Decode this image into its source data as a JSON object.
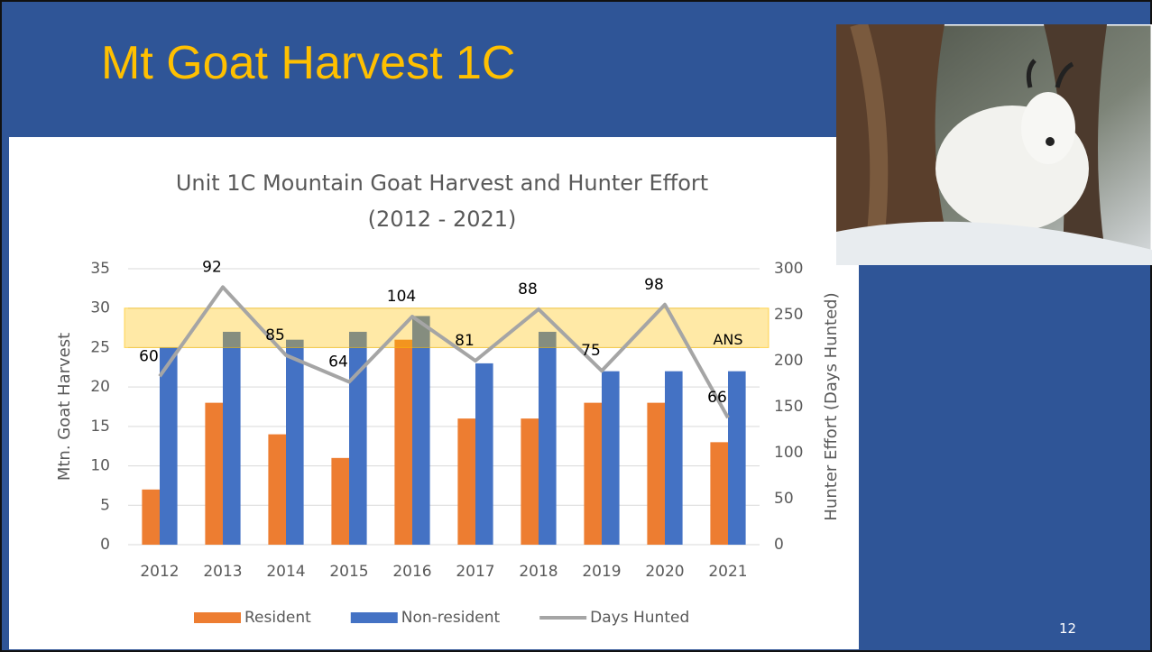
{
  "slide": {
    "title": "Mt Goat Harvest 1C",
    "page_number": "12"
  },
  "chart_data": {
    "type": "bar-line",
    "title": [
      "Unit 1C Mountain Goat Harvest and Hunter Effort",
      "(2012 - 2021)"
    ],
    "y_label": "Mtn. Goat Harvest",
    "y2_label": "Hunter Effort (Days Hunted)",
    "categories": [
      "2012",
      "2013",
      "2014",
      "2015",
      "2016",
      "2017",
      "2018",
      "2019",
      "2020",
      "2021"
    ],
    "series": [
      {
        "name": "Resident",
        "type": "bar",
        "color": "#ed7d31",
        "values": [
          7,
          18,
          14,
          11,
          26,
          16,
          16,
          18,
          18,
          13
        ]
      },
      {
        "name": "Non-resident",
        "type": "bar",
        "color": "#4472c4",
        "values": [
          25,
          27,
          26,
          27,
          29,
          23,
          27,
          22,
          22,
          22
        ]
      },
      {
        "name": "Days Hunted",
        "type": "line",
        "axis": "y2",
        "color": "#a5a5a5",
        "values": [
          183,
          280,
          206,
          177,
          248,
          200,
          256,
          189,
          261,
          138
        ]
      }
    ],
    "point_labels": [
      "60",
      "92",
      "85",
      "64",
      "104",
      "81",
      "88",
      "75",
      "98",
      "66"
    ],
    "annotation": "ANS",
    "highlight": {
      "range": [
        25,
        30
      ],
      "color": "#ffc000"
    },
    "ylim": [
      0,
      35
    ],
    "yticks": [
      0,
      5,
      10,
      15,
      20,
      25,
      30,
      35
    ],
    "y2lim": [
      0,
      300
    ],
    "y2ticks": [
      0,
      50,
      100,
      150,
      200,
      250,
      300
    ],
    "grid": true,
    "legend": "bottom"
  }
}
